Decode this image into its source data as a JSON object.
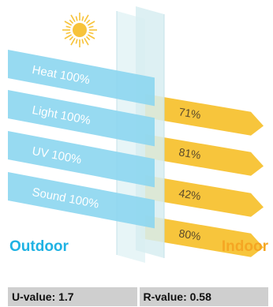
{
  "colors": {
    "incoming": "#8cd6ef",
    "outgoing": "#f7c53c",
    "outdoor": "#1fb2e3",
    "indoor": "#f5a623",
    "sun": "#f7c33a",
    "glass": "#d8eef2"
  },
  "incoming": [
    {
      "label": "Heat 100%"
    },
    {
      "label": "Light 100%"
    },
    {
      "label": "UV 100%"
    },
    {
      "label": "Sound 100%"
    }
  ],
  "outgoing": [
    {
      "label": "71%",
      "value": 71
    },
    {
      "label": "81%",
      "value": 81
    },
    {
      "label": "42%",
      "value": 42
    },
    {
      "label": "80%",
      "value": 80
    }
  ],
  "sides": {
    "outdoor": "Outdoor",
    "indoor": "Indoor"
  },
  "table": {
    "u_value": "U-value: 1.7",
    "r_value": "R-value: 0.58"
  },
  "icons": {
    "sun": "sun-icon"
  }
}
